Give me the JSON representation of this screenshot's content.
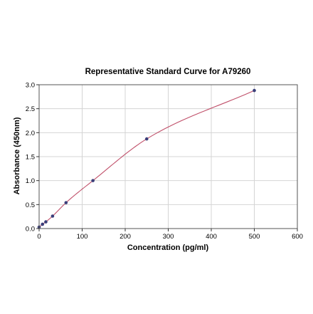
{
  "chart_data": {
    "type": "scatter",
    "title": "Representative Standard Curve for A79260",
    "xlabel": "Concentration (pg/ml)",
    "ylabel": "Absorbance (450nm)",
    "xlim": [
      0,
      600
    ],
    "ylim": [
      0,
      3.0
    ],
    "xticks": [
      0,
      100,
      200,
      300,
      400,
      500,
      600
    ],
    "yticks": [
      0.0,
      0.5,
      1.0,
      1.5,
      2.0,
      2.5,
      3.0
    ],
    "ytick_labels": [
      "0.0",
      "0.5",
      "1.0",
      "1.5",
      "2.0",
      "2.5",
      "3.0"
    ],
    "grid": true,
    "series": [
      {
        "x": [
          0,
          7.8,
          15.6,
          31.25,
          62.5,
          125,
          250,
          500
        ],
        "y": [
          0.03,
          0.09,
          0.14,
          0.26,
          0.54,
          1.0,
          1.87,
          2.88
        ]
      }
    ],
    "fit": "smooth curve",
    "colors": {
      "points": "#3a3f7a",
      "curve": "#c0506a",
      "grid": "#d4d4d4"
    }
  }
}
